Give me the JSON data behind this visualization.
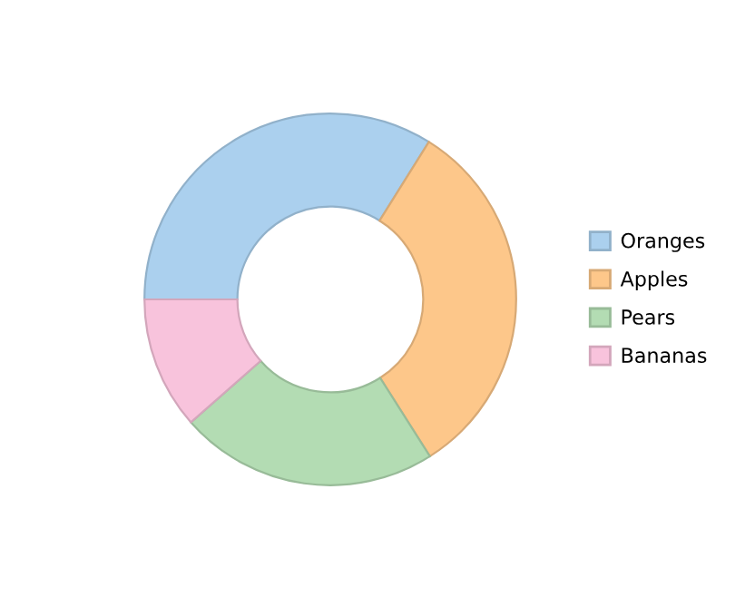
{
  "chart_data": {
    "type": "donut",
    "categories": [
      "Oranges",
      "Apples",
      "Pears",
      "Bananas"
    ],
    "values": [
      33.9,
      32.1,
      22.5,
      11.5
    ],
    "colors": [
      "#abd0ee",
      "#fdc78a",
      "#b3dcb3",
      "#f8c3dc"
    ],
    "legend": "right"
  }
}
